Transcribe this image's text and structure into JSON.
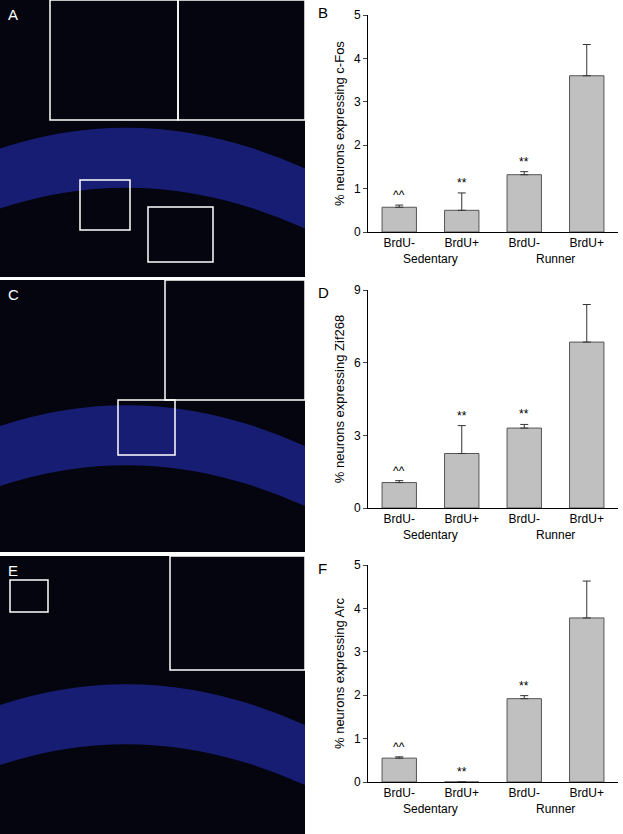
{
  "images": [
    {
      "label": "A"
    },
    {
      "label": "C"
    },
    {
      "label": "E"
    }
  ],
  "chart_data": [
    {
      "type": "bar",
      "panel": "B",
      "ylabel": "% neurons expressing c-Fos",
      "categories": [
        "BrdU-",
        "BrdU+",
        "BrdU-",
        "BrdU+"
      ],
      "group_labels": [
        "Sedentary",
        "Sedentary",
        "Runner",
        "Runner"
      ],
      "values": [
        0.57,
        0.5,
        1.32,
        3.6
      ],
      "errors": [
        0.05,
        0.4,
        0.07,
        0.72
      ],
      "significance": [
        "^^",
        "**",
        "**",
        null
      ],
      "color": "#c0c0c0",
      "ylim": [
        0,
        5
      ],
      "yticks": [
        0,
        1,
        2,
        3,
        4,
        5
      ],
      "grid": false
    },
    {
      "type": "bar",
      "panel": "D",
      "ylabel": "% neurons expressing Zif268",
      "categories": [
        "BrdU-",
        "BrdU+",
        "BrdU-",
        "BrdU+"
      ],
      "group_labels": [
        "Sedentary",
        "Sedentary",
        "Runner",
        "Runner"
      ],
      "values": [
        1.05,
        2.25,
        3.3,
        6.85
      ],
      "errors": [
        0.08,
        1.15,
        0.15,
        1.55
      ],
      "significance": [
        "^^",
        "**",
        "**",
        null
      ],
      "color": "#c0c0c0",
      "ylim": [
        0,
        9
      ],
      "yticks": [
        0,
        3,
        6,
        9
      ],
      "grid": false
    },
    {
      "type": "bar",
      "panel": "F",
      "ylabel": "% neurons expressing Arc",
      "categories": [
        "BrdU-",
        "BrdU+",
        "BrdU-",
        "BrdU+"
      ],
      "group_labels": [
        "Sedentary",
        "Sedentary",
        "Runner",
        "Runner"
      ],
      "values": [
        0.55,
        0,
        1.92,
        3.78
      ],
      "errors": [
        0.03,
        0,
        0.07,
        0.85
      ],
      "significance": [
        "^^",
        "**",
        "**",
        null
      ],
      "color": "#c0c0c0",
      "ylim": [
        0,
        5
      ],
      "yticks": [
        0,
        1,
        2,
        3,
        4,
        5
      ],
      "grid": false
    }
  ]
}
